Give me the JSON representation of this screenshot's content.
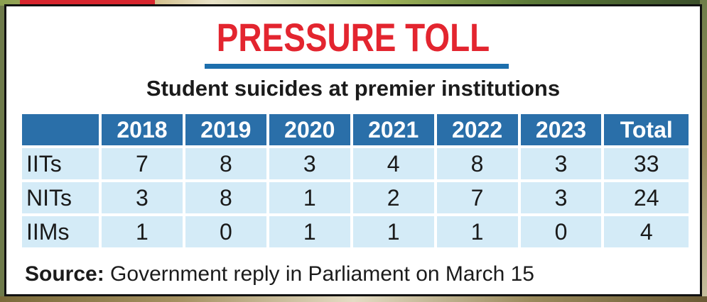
{
  "title": "PRESSURE TOLL",
  "subtitle": "Student suicides at premier institutions",
  "table": {
    "columns": [
      "2018",
      "2019",
      "2020",
      "2021",
      "2022",
      "2023",
      "Total"
    ],
    "rows": [
      {
        "label": "IITs",
        "values": [
          "7",
          "8",
          "3",
          "4",
          "8",
          "3",
          "33"
        ]
      },
      {
        "label": "NITs",
        "values": [
          "3",
          "8",
          "1",
          "2",
          "7",
          "3",
          "24"
        ]
      },
      {
        "label": "IIMs",
        "values": [
          "1",
          "0",
          "1",
          "1",
          "1",
          "0",
          "4"
        ]
      }
    ]
  },
  "source": {
    "label": "Source:",
    "text": "Government reply in Parliament on March 15"
  },
  "colors": {
    "title": "#e3252f",
    "header_bg": "#2a6fa9",
    "row_bg": "#d4ebf7",
    "rule": "#1d6fad"
  }
}
